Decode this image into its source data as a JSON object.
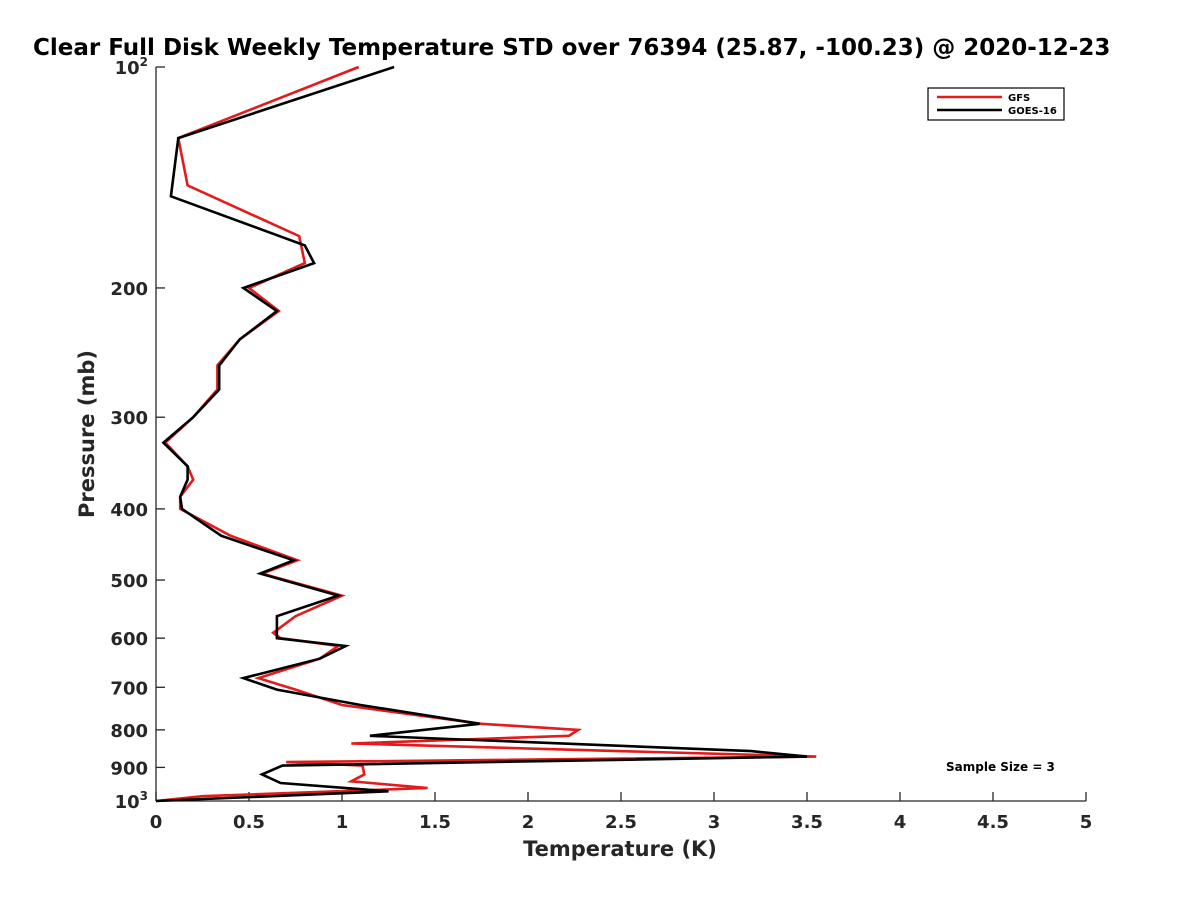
{
  "chart_data": {
    "type": "line",
    "title": "Clear Full Disk Weekly Temperature STD over 76394 (25.87, -100.23) @ 2020-12-23",
    "xlabel": "Temperature (K)",
    "ylabel": "Pressure (mb)",
    "xlim": [
      0,
      5
    ],
    "ylim": [
      100,
      1000
    ],
    "y_scale": "log",
    "y_reversed": true,
    "grid": false,
    "legend_position": "top-right",
    "x_ticks": [
      0,
      0.5,
      1,
      1.5,
      2,
      2.5,
      3,
      3.5,
      4,
      4.5,
      5
    ],
    "x_tick_labels": [
      "0",
      "0.5",
      "1",
      "1.5",
      "2",
      "2.5",
      "3",
      "3.5",
      "4",
      "4.5",
      "5"
    ],
    "y_ticks": [
      {
        "value": 100,
        "base": "10",
        "exp": "2"
      },
      {
        "value": 200,
        "label": "200"
      },
      {
        "value": 300,
        "label": "300"
      },
      {
        "value": 400,
        "label": "400"
      },
      {
        "value": 500,
        "label": "500"
      },
      {
        "value": 600,
        "label": "600"
      },
      {
        "value": 700,
        "label": "700"
      },
      {
        "value": 800,
        "label": "800"
      },
      {
        "value": 900,
        "label": "900"
      },
      {
        "value": 1000,
        "base": "10",
        "exp": "3"
      }
    ],
    "annotation": "Sample Size = 3",
    "series": [
      {
        "name": "GFS",
        "color": "#e41a1c",
        "points": [
          [
            1.09,
            100
          ],
          [
            0.12,
            125
          ],
          [
            0.17,
            145
          ],
          [
            0.77,
            170
          ],
          [
            0.8,
            185
          ],
          [
            0.5,
            200
          ],
          [
            0.66,
            215
          ],
          [
            0.45,
            235
          ],
          [
            0.33,
            255
          ],
          [
            0.33,
            275
          ],
          [
            0.2,
            300
          ],
          [
            0.05,
            325
          ],
          [
            0.17,
            350
          ],
          [
            0.2,
            365
          ],
          [
            0.13,
            385
          ],
          [
            0.13,
            400
          ],
          [
            0.4,
            435
          ],
          [
            0.76,
            470
          ],
          [
            0.57,
            490
          ],
          [
            1.0,
            525
          ],
          [
            0.75,
            560
          ],
          [
            0.63,
            590
          ],
          [
            0.67,
            600
          ],
          [
            0.98,
            615
          ],
          [
            0.88,
            640
          ],
          [
            0.55,
            680
          ],
          [
            0.75,
            705
          ],
          [
            1.0,
            740
          ],
          [
            1.75,
            785
          ],
          [
            2.27,
            800
          ],
          [
            2.22,
            815
          ],
          [
            1.05,
            835
          ],
          [
            3.55,
            870
          ],
          [
            0.7,
            885
          ],
          [
            1.11,
            895
          ],
          [
            1.12,
            920
          ],
          [
            1.05,
            940
          ],
          [
            1.46,
            960
          ],
          [
            0.25,
            985
          ],
          [
            0.0,
            1000
          ]
        ]
      },
      {
        "name": "GOES-16",
        "color": "#000000",
        "points": [
          [
            1.28,
            100
          ],
          [
            0.12,
            125
          ],
          [
            0.08,
            150
          ],
          [
            0.8,
            175
          ],
          [
            0.85,
            185
          ],
          [
            0.47,
            200
          ],
          [
            0.65,
            215
          ],
          [
            0.45,
            235
          ],
          [
            0.34,
            255
          ],
          [
            0.34,
            275
          ],
          [
            0.2,
            300
          ],
          [
            0.04,
            325
          ],
          [
            0.17,
            350
          ],
          [
            0.17,
            365
          ],
          [
            0.13,
            385
          ],
          [
            0.14,
            400
          ],
          [
            0.35,
            435
          ],
          [
            0.74,
            470
          ],
          [
            0.56,
            490
          ],
          [
            0.98,
            525
          ],
          [
            0.65,
            560
          ],
          [
            0.65,
            590
          ],
          [
            0.65,
            600
          ],
          [
            1.02,
            615
          ],
          [
            0.88,
            640
          ],
          [
            0.47,
            680
          ],
          [
            0.65,
            705
          ],
          [
            1.1,
            740
          ],
          [
            1.74,
            785
          ],
          [
            1.15,
            815
          ],
          [
            3.2,
            855
          ],
          [
            3.5,
            870
          ],
          [
            0.68,
            895
          ],
          [
            0.57,
            920
          ],
          [
            0.67,
            945
          ],
          [
            1.25,
            970
          ],
          [
            0.0,
            1000
          ]
        ]
      }
    ]
  }
}
